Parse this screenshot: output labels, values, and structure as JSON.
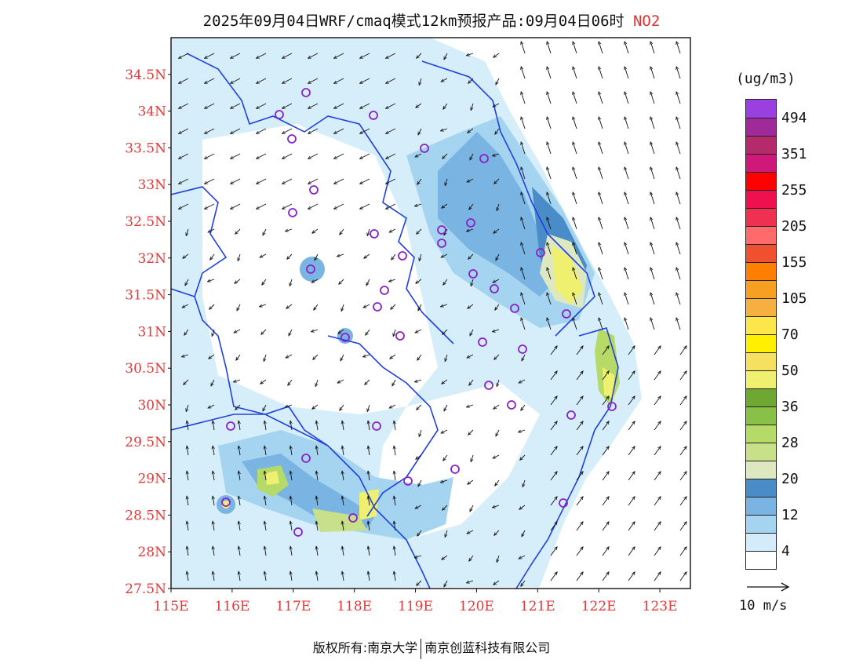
{
  "title": {
    "main": "2025年09月04日WRF/cmaq模式12km预报产品:09月04日06时",
    "pollutant": "NO2"
  },
  "axes": {
    "lat_labels": [
      "34.5N",
      "34N",
      "33.5N",
      "33N",
      "32.5N",
      "32N",
      "31.5N",
      "31N",
      "30.5N",
      "30N",
      "29.5N",
      "29N",
      "28.5N",
      "28N",
      "27.5N"
    ],
    "lon_labels": [
      "115E",
      "116E",
      "117E",
      "118E",
      "119E",
      "120E",
      "121E",
      "122E",
      "123E"
    ],
    "lat_range": [
      27.5,
      35.0
    ],
    "lon_range": [
      115.0,
      123.5
    ]
  },
  "legend": {
    "unit": "(ug/m3)",
    "labels": [
      "494",
      "351",
      "255",
      "205",
      "155",
      "105",
      "70",
      "50",
      "36",
      "28",
      "20",
      "12",
      "4"
    ],
    "colors": [
      "#9a3fe0",
      "#a02a9a",
      "#b52a6a",
      "#d0187a",
      "#ff0000",
      "#ef1050",
      "#ef3050",
      "#ff6a6a",
      "#ee5030",
      "#ff8000",
      "#f5a020",
      "#f5b040",
      "#fde64a",
      "#fff000",
      "#f5e060",
      "#f0f070",
      "#6ea832",
      "#88c048",
      "#b6da68",
      "#c8e08a",
      "#dde8c0",
      "#4a8cc8",
      "#7ab4e2",
      "#a4d4f0",
      "#d2ecfa",
      "#ffffff"
    ],
    "vector_ref": "10 m/s"
  },
  "stations": [
    "site",
    "site",
    "site"
  ],
  "copyright": {
    "left": "版权所有:南京大学",
    "right": "南京创蓝科技有限公司"
  }
}
